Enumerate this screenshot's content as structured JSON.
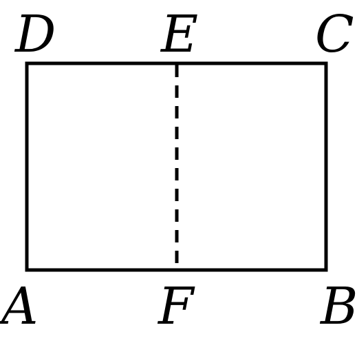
{
  "diagram": {
    "vertices": {
      "A": "A",
      "B": "B",
      "C": "C",
      "D": "D",
      "E": "E",
      "F": "F"
    },
    "segments": [
      {
        "from": "A",
        "to": "B",
        "style": "solid"
      },
      {
        "from": "B",
        "to": "C",
        "style": "solid"
      },
      {
        "from": "C",
        "to": "D",
        "style": "solid"
      },
      {
        "from": "D",
        "to": "A",
        "style": "solid"
      },
      {
        "from": "E",
        "to": "F",
        "style": "dashed"
      }
    ],
    "colors": {
      "stroke": "#000000",
      "background": "#ffffff"
    }
  }
}
